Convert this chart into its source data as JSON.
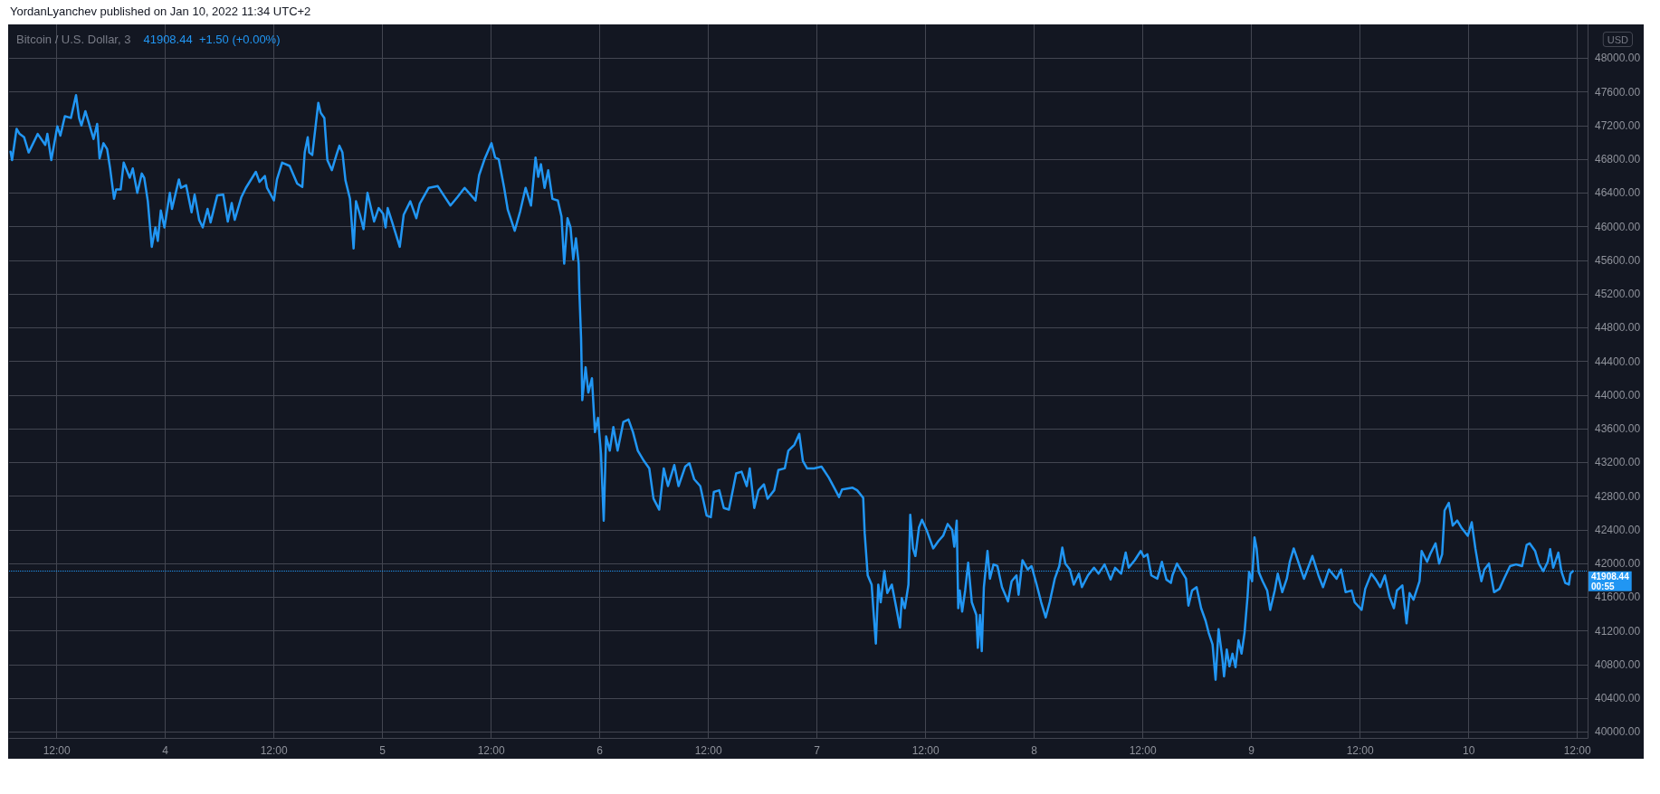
{
  "chart_data": {
    "type": "line",
    "title": "Bitcoin / U.S. Dollar, 3",
    "subtitle": "41908.44  +1.50 (+0.00%)",
    "ylabel": "USD",
    "annotations": [
      "YordanLyanchev published on Jan 10, 2022 11:34 UTC+2",
      "00:55"
    ],
    "color": "#2196f3",
    "marker": "none",
    "grid": true,
    "xlim": [
      "2022-01-03T06:44",
      "2022-01-10T13:08"
    ],
    "xticks": [
      {
        "value": "2022-01-03T12:00",
        "label": "12:00"
      },
      {
        "value": "2022-01-04T00:00",
        "label": "4"
      },
      {
        "value": "2022-01-04T12:00",
        "label": "12:00"
      },
      {
        "value": "2022-01-05T00:00",
        "label": "5"
      },
      {
        "value": "2022-01-05T12:00",
        "label": "12:00"
      },
      {
        "value": "2022-01-06T00:00",
        "label": "6"
      },
      {
        "value": "2022-01-06T12:00",
        "label": "12:00"
      },
      {
        "value": "2022-01-07T00:00",
        "label": "7"
      },
      {
        "value": "2022-01-07T12:00",
        "label": "12:00"
      },
      {
        "value": "2022-01-08T00:00",
        "label": "8"
      },
      {
        "value": "2022-01-08T12:00",
        "label": "12:00"
      },
      {
        "value": "2022-01-09T00:00",
        "label": "9"
      },
      {
        "value": "2022-01-09T12:00",
        "label": "12:00"
      },
      {
        "value": "2022-01-10T00:00",
        "label": "10"
      },
      {
        "value": "2022-01-10T12:00",
        "label": "12:00"
      }
    ],
    "ylim": [
      39930,
      48400
    ],
    "yticks": [
      {
        "value": 40000,
        "label": "40000.00"
      },
      {
        "value": 40400,
        "label": "40400.00"
      },
      {
        "value": 40800,
        "label": "40800.00"
      },
      {
        "value": 41200,
        "label": "41200.00"
      },
      {
        "value": 41600,
        "label": "41600.00"
      },
      {
        "value": 42000,
        "label": "42000.00"
      },
      {
        "value": 42400,
        "label": "42400.00"
      },
      {
        "value": 42800,
        "label": "42800.00"
      },
      {
        "value": 43200,
        "label": "43200.00"
      },
      {
        "value": 43600,
        "label": "43600.00"
      },
      {
        "value": 44000,
        "label": "44000.00"
      },
      {
        "value": 44400,
        "label": "44400.00"
      },
      {
        "value": 44800,
        "label": "44800.00"
      },
      {
        "value": 45200,
        "label": "45200.00"
      },
      {
        "value": 45600,
        "label": "45600.00"
      },
      {
        "value": 46000,
        "label": "46000.00"
      },
      {
        "value": 46400,
        "label": "46400.00"
      },
      {
        "value": 46800,
        "label": "46800.00"
      },
      {
        "value": 47200,
        "label": "47200.00"
      },
      {
        "value": 47600,
        "label": "47600.00"
      },
      {
        "value": 48000,
        "label": "48000.00"
      }
    ],
    "ref_lines": [
      {
        "axis": "y",
        "value": 41908.44,
        "label": "41908.44",
        "color": "#2196f3",
        "line_style": "dotted"
      }
    ],
    "x": [
      "2022-01-03T06:54",
      "2022-01-03T07:04",
      "2022-01-03T07:34",
      "2022-01-03T07:54",
      "2022-01-03T08:24",
      "2022-01-03T08:54",
      "2022-01-03T09:54",
      "2022-01-03T10:44",
      "2022-01-03T10:58",
      "2022-01-03T11:24",
      "2022-01-03T12:04",
      "2022-01-03T12:24",
      "2022-01-03T12:54",
      "2022-01-03T13:34",
      "2022-01-03T14:08",
      "2022-01-03T14:28",
      "2022-01-03T14:44",
      "2022-01-03T15:10",
      "2022-01-03T15:28",
      "2022-01-03T16:04",
      "2022-01-03T16:28",
      "2022-01-03T16:44",
      "2022-01-03T17:10",
      "2022-01-03T17:34",
      "2022-01-03T17:54",
      "2022-01-03T18:20",
      "2022-01-03T18:34",
      "2022-01-03T19:04",
      "2022-01-03T19:24",
      "2022-01-03T20:04",
      "2022-01-03T20:24",
      "2022-01-03T20:54",
      "2022-01-03T21:24",
      "2022-01-03T21:40",
      "2022-01-03T22:04",
      "2022-01-03T22:30",
      "2022-01-03T22:54",
      "2022-01-03T23:10",
      "2022-01-03T23:30",
      "2022-01-03T23:54",
      "2022-01-04T00:30",
      "2022-01-04T00:44",
      "2022-01-04T01:30",
      "2022-01-04T01:44",
      "2022-01-04T02:18",
      "2022-01-04T02:54",
      "2022-01-04T03:14",
      "2022-01-04T03:44",
      "2022-01-04T04:08",
      "2022-01-04T04:40",
      "2022-01-04T05:00",
      "2022-01-04T05:44",
      "2022-01-04T06:24",
      "2022-01-04T06:54",
      "2022-01-04T07:20",
      "2022-01-04T07:40",
      "2022-01-04T08:24",
      "2022-01-04T08:54",
      "2022-01-04T10:00",
      "2022-01-04T10:24",
      "2022-01-04T11:00",
      "2022-01-04T11:14",
      "2022-01-04T12:00",
      "2022-01-04T12:20",
      "2022-01-04T12:54",
      "2022-01-04T13:44",
      "2022-01-04T14:34",
      "2022-01-04T15:08",
      "2022-01-04T15:24",
      "2022-01-04T15:44",
      "2022-01-04T15:54",
      "2022-01-04T16:14",
      "2022-01-04T16:54",
      "2022-01-04T17:10",
      "2022-01-04T17:34",
      "2022-01-04T17:54",
      "2022-01-04T18:24",
      "2022-01-04T18:54",
      "2022-01-04T19:14",
      "2022-01-04T19:34",
      "2022-01-04T19:54",
      "2022-01-04T20:24",
      "2022-01-04T20:48",
      "2022-01-04T21:04",
      "2022-01-04T21:30",
      "2022-01-04T21:54",
      "2022-01-04T22:20",
      "2022-01-04T23:04",
      "2022-01-04T23:34",
      "2022-01-05T00:04",
      "2022-01-05T00:20",
      "2022-01-05T00:34",
      "2022-01-05T01:04",
      "2022-01-05T01:54",
      "2022-01-05T02:20",
      "2022-01-05T03:04",
      "2022-01-05T03:44",
      "2022-01-05T04:06",
      "2022-01-05T05:06",
      "2022-01-05T06:06",
      "2022-01-05T06:42",
      "2022-01-05T07:30",
      "2022-01-05T08:16",
      "2022-01-05T09:04",
      "2022-01-05T10:16",
      "2022-01-05T10:40",
      "2022-01-05T11:16",
      "2022-01-05T12:02",
      "2022-01-05T12:26",
      "2022-01-05T12:50",
      "2022-01-05T13:26",
      "2022-01-05T13:50",
      "2022-01-05T14:36",
      "2022-01-05T15:12",
      "2022-01-05T15:48",
      "2022-01-05T16:24",
      "2022-01-05T16:54",
      "2022-01-05T17:12",
      "2022-01-05T17:30",
      "2022-01-05T17:54",
      "2022-01-05T18:18",
      "2022-01-05T18:46",
      "2022-01-05T19:22",
      "2022-01-05T19:46",
      "2022-01-05T20:04",
      "2022-01-05T20:26",
      "2022-01-05T20:46",
      "2022-01-05T21:04",
      "2022-01-05T21:22",
      "2022-01-05T21:40",
      "2022-01-05T21:44",
      "2022-01-05T21:56",
      "2022-01-05T22:04",
      "2022-01-05T22:26",
      "2022-01-05T22:44",
      "2022-01-05T23:08",
      "2022-01-05T23:28",
      "2022-01-05T23:48",
      "2022-01-06T00:08",
      "2022-01-06T00:26",
      "2022-01-06T00:42",
      "2022-01-06T01:06",
      "2022-01-06T01:30",
      "2022-01-06T01:58",
      "2022-01-06T02:36",
      "2022-01-06T03:10",
      "2022-01-06T03:40",
      "2022-01-06T04:12",
      "2022-01-06T04:52",
      "2022-01-06T05:28",
      "2022-01-06T05:56",
      "2022-01-06T06:34",
      "2022-01-06T07:04",
      "2022-01-06T07:32",
      "2022-01-06T08:14",
      "2022-01-06T08:42",
      "2022-01-06T09:26",
      "2022-01-06T09:54",
      "2022-01-06T10:26",
      "2022-01-06T11:06",
      "2022-01-06T11:48",
      "2022-01-06T12:16",
      "2022-01-06T12:36",
      "2022-01-06T13:12",
      "2022-01-06T13:42",
      "2022-01-06T14:16",
      "2022-01-06T15:04",
      "2022-01-06T15:40",
      "2022-01-06T16:14",
      "2022-01-06T16:34",
      "2022-01-06T17:04",
      "2022-01-06T17:32",
      "2022-01-06T18:08",
      "2022-01-06T18:32",
      "2022-01-06T19:16",
      "2022-01-06T19:44",
      "2022-01-06T20:26",
      "2022-01-06T20:50",
      "2022-01-06T21:30",
      "2022-01-06T22:02",
      "2022-01-06T22:26",
      "2022-01-06T22:54",
      "2022-01-06T23:40",
      "2022-01-07T00:30",
      "2022-01-07T01:18",
      "2022-01-07T02:06",
      "2022-01-07T02:26",
      "2022-01-07T02:46",
      "2022-01-07T03:56",
      "2022-01-07T04:26",
      "2022-01-07T05:06",
      "2022-01-07T05:16",
      "2022-01-07T05:36",
      "2022-01-07T06:02",
      "2022-01-07T06:16",
      "2022-01-07T06:30",
      "2022-01-07T06:46",
      "2022-01-07T07:02",
      "2022-01-07T07:26",
      "2022-01-07T07:46",
      "2022-01-07T08:16",
      "2022-01-07T08:46",
      "2022-01-07T09:10",
      "2022-01-07T09:22",
      "2022-01-07T09:42",
      "2022-01-07T10:06",
      "2022-01-07T10:18",
      "2022-01-07T10:36",
      "2022-01-07T10:52",
      "2022-01-07T11:16",
      "2022-01-07T11:36",
      "2022-01-07T12:06",
      "2022-01-07T12:50",
      "2022-01-07T13:26",
      "2022-01-07T13:56",
      "2022-01-07T14:26",
      "2022-01-07T14:56",
      "2022-01-07T15:10",
      "2022-01-07T15:26",
      "2022-01-07T15:36",
      "2022-01-07T15:46",
      "2022-01-07T16:02",
      "2022-01-07T16:22",
      "2022-01-07T16:42",
      "2022-01-07T17:06",
      "2022-01-07T17:36",
      "2022-01-07T17:46",
      "2022-01-07T18:00",
      "2022-01-07T18:12",
      "2022-01-07T18:26",
      "2022-01-07T18:50",
      "2022-01-07T19:06",
      "2022-01-07T19:30",
      "2022-01-07T19:56",
      "2022-01-07T20:26",
      "2022-01-07T21:06",
      "2022-01-07T21:30",
      "2022-01-07T22:02",
      "2022-01-07T22:16",
      "2022-01-07T22:42",
      "2022-01-07T23:16",
      "2022-01-07T23:42",
      "2022-01-08T00:16",
      "2022-01-08T00:46",
      "2022-01-08T01:16",
      "2022-01-08T01:42",
      "2022-01-08T02:16",
      "2022-01-08T02:46",
      "2022-01-08T03:06",
      "2022-01-08T03:26",
      "2022-01-08T03:56",
      "2022-01-08T04:22",
      "2022-01-08T04:56",
      "2022-01-08T05:16",
      "2022-01-08T05:56",
      "2022-01-08T06:36",
      "2022-01-08T07:06",
      "2022-01-08T07:46",
      "2022-01-08T08:26",
      "2022-01-08T08:56",
      "2022-01-08T09:36",
      "2022-01-08T10:06",
      "2022-01-08T10:26",
      "2022-01-08T11:06",
      "2022-01-08T11:46",
      "2022-01-08T12:06",
      "2022-01-08T12:30",
      "2022-01-08T12:56",
      "2022-01-08T13:36",
      "2022-01-08T14:06",
      "2022-01-08T14:36",
      "2022-01-08T15:06",
      "2022-01-08T15:16",
      "2022-01-08T15:46",
      "2022-01-08T16:16",
      "2022-01-08T16:46",
      "2022-01-08T17:02",
      "2022-01-08T17:26",
      "2022-01-08T17:56",
      "2022-01-08T18:26",
      "2022-01-08T18:56",
      "2022-01-08T19:16",
      "2022-01-08T19:42",
      "2022-01-08T20:02",
      "2022-01-08T20:22",
      "2022-01-08T20:46",
      "2022-01-08T20:58",
      "2022-01-08T21:16",
      "2022-01-08T21:34",
      "2022-01-08T21:54",
      "2022-01-08T22:14",
      "2022-01-08T22:34",
      "2022-01-08T22:54",
      "2022-01-08T23:14",
      "2022-01-08T23:34",
      "2022-01-08T23:44",
      "2022-01-09T00:04",
      "2022-01-09T00:20",
      "2022-01-09T00:34",
      "2022-01-09T00:48",
      "2022-01-09T01:14",
      "2022-01-09T01:44",
      "2022-01-09T02:04",
      "2022-01-09T02:34",
      "2022-01-09T02:54",
      "2022-01-09T03:24",
      "2022-01-09T03:54",
      "2022-01-09T04:14",
      "2022-01-09T04:40",
      "2022-01-09T05:14",
      "2022-01-09T05:48",
      "2022-01-09T06:44",
      "2022-01-09T07:24",
      "2022-01-09T07:54",
      "2022-01-09T08:34",
      "2022-01-09T09:24",
      "2022-01-09T09:54",
      "2022-01-09T10:24",
      "2022-01-09T11:04",
      "2022-01-09T11:24",
      "2022-01-09T12:10",
      "2022-01-09T12:34",
      "2022-01-09T13:14",
      "2022-01-09T13:44",
      "2022-01-09T14:14",
      "2022-01-09T14:44",
      "2022-01-09T15:14",
      "2022-01-09T15:44",
      "2022-01-09T16:04",
      "2022-01-09T16:40",
      "2022-01-09T17:08",
      "2022-01-09T17:28",
      "2022-01-09T17:54",
      "2022-01-09T18:34",
      "2022-01-09T18:48",
      "2022-01-09T19:24",
      "2022-01-09T19:44",
      "2022-01-09T20:20",
      "2022-01-09T20:44",
      "2022-01-09T21:04",
      "2022-01-09T21:20",
      "2022-01-09T21:48",
      "2022-01-09T22:14",
      "2022-01-09T22:44",
      "2022-01-09T23:14",
      "2022-01-09T23:54",
      "2022-01-10T00:20",
      "2022-01-10T00:44",
      "2022-01-10T01:04",
      "2022-01-10T01:24",
      "2022-01-10T01:44",
      "2022-01-10T02:14",
      "2022-01-10T02:48",
      "2022-01-10T03:24",
      "2022-01-10T03:54",
      "2022-01-10T04:34",
      "2022-01-10T05:14",
      "2022-01-10T05:54",
      "2022-01-10T06:24",
      "2022-01-10T06:44",
      "2022-01-10T07:20",
      "2022-01-10T07:44",
      "2022-01-10T08:14",
      "2022-01-10T08:44",
      "2022-01-10T09:00",
      "2022-01-10T09:20",
      "2022-01-10T09:54",
      "2022-01-10T10:14",
      "2022-01-10T10:40",
      "2022-01-10T11:04",
      "2022-01-10T11:14",
      "2022-01-10T11:30"
    ],
    "values": [
      46890,
      46790,
      47160,
      47100,
      47060,
      46880,
      47100,
      46970,
      47100,
      46790,
      47190,
      47080,
      47310,
      47290,
      47560,
      47290,
      47200,
      47370,
      47260,
      47040,
      47220,
      46810,
      46990,
      46920,
      46690,
      46330,
      46440,
      46440,
      46760,
      46580,
      46690,
      46400,
      46630,
      46580,
      46300,
      45760,
      45990,
      45830,
      46190,
      45990,
      46400,
      46210,
      46560,
      46460,
      46490,
      46170,
      46380,
      46080,
      45990,
      46210,
      46050,
      46370,
      46380,
      46060,
      46280,
      46080,
      46350,
      46460,
      46650,
      46530,
      46600,
      46460,
      46310,
      46560,
      46760,
      46720,
      46510,
      46470,
      46880,
      47060,
      46880,
      46850,
      47470,
      47350,
      47290,
      46790,
      46670,
      46850,
      46960,
      46880,
      46550,
      46330,
      45740,
      46300,
      46140,
      45970,
      46400,
      46060,
      46220,
      46150,
      45990,
      46220,
      46050,
      45760,
      46140,
      46300,
      46100,
      46270,
      46460,
      46480,
      46380,
      46250,
      46350,
      46460,
      46310,
      46610,
      46800,
      46990,
      46820,
      46800,
      46460,
      46200,
      45950,
      46180,
      46460,
      46250,
      46820,
      46590,
      46740,
      46460,
      46670,
      46330,
      46310,
      46120,
      45560,
      46100,
      45990,
      45610,
      45860,
      45560,
      45260,
      44670,
      43940,
      44330,
      44030,
      44200,
      43560,
      43730,
      43300,
      42510,
      43510,
      43340,
      43620,
      43340,
      43680,
      43710,
      43560,
      43340,
      43220,
      43130,
      42770,
      42640,
      43130,
      42920,
      43170,
      42920,
      43150,
      43190,
      43000,
      42920,
      42570,
      42550,
      42850,
      42870,
      42660,
      42640,
      43070,
      43090,
      42920,
      43130,
      42660,
      42870,
      42940,
      42770,
      42870,
      43110,
      43130,
      43340,
      43410,
      43540,
      43220,
      43130,
      43130,
      43150,
      43020,
      42860,
      42790,
      42880,
      42900,
      42870,
      42780,
      42360,
      41860,
      41750,
      41390,
      41050,
      41750,
      41540,
      41910,
      41650,
      41750,
      41470,
      41240,
      41590,
      41470,
      41750,
      42580,
      42180,
      42090,
      42430,
      42520,
      42400,
      42180,
      42270,
      42330,
      42470,
      42400,
      42200,
      42510,
      41470,
      41680,
      41430,
      41680,
      42010,
      41540,
      41390,
      41000,
      41390,
      40960,
      41720,
      42150,
      41820,
      41990,
      41970,
      41720,
      41550,
      41790,
      41860,
      41630,
      42040,
      41930,
      41970,
      41750,
      41540,
      41360,
      41540,
      41820,
      41970,
      42190,
      42000,
      41930,
      41750,
      41880,
      41720,
      41860,
      41950,
      41880,
      41990,
      41810,
      41950,
      41880,
      42130,
      41950,
      42040,
      42150,
      42080,
      42110,
      41860,
      41820,
      42020,
      41810,
      41770,
      41860,
      42000,
      41910,
      41820,
      41500,
      41680,
      41720,
      41470,
      41320,
      41180,
      41040,
      40620,
      41220,
      40890,
      40660,
      40980,
      40780,
      40930,
      40770,
      41090,
      40930,
      41180,
      41610,
      41900,
      41790,
      42310,
      42180,
      41900,
      41790,
      41680,
      41450,
      41680,
      41880,
      41660,
      41820,
      42020,
      42180,
      42000,
      41820,
      42090,
      41860,
      41720,
      41930,
      41820,
      41930,
      41660,
      41680,
      41540,
      41450,
      41700,
      41880,
      41810,
      41720,
      41860,
      41610,
      41470,
      41680,
      41740,
      41290,
      41650,
      41570,
      41790,
      42150,
      42020,
      42110,
      42240,
      42000,
      42110,
      42630,
      42720,
      42450,
      42510,
      42420,
      42330,
      42490,
      42180,
      41970,
      41790,
      41930,
      42000,
      41660,
      41700,
      41820,
      41970,
      41990,
      41970,
      42220,
      42240,
      42150,
      42000,
      41910,
      42020,
      42170,
      41950,
      42130,
      41910,
      41770,
      41750,
      41880,
      41910
    ]
  }
}
